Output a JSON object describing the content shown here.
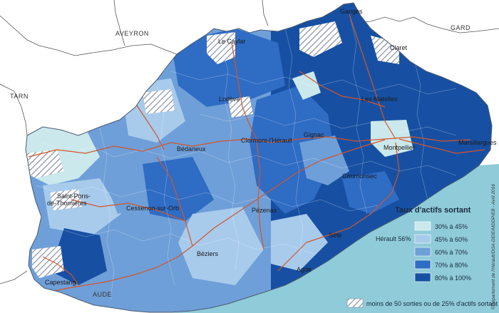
{
  "departments": {
    "aveyron": "AVEYRON",
    "gard": "GARD",
    "tarn": "TARN",
    "aude": "AUDE"
  },
  "towns": {
    "ganges": "Ganges",
    "le_caylar": "Le Caylar",
    "claret": "Claret",
    "les_matelles": "Les Matelles",
    "lodeve": "Lodève",
    "bedarieux": "Bédarieux",
    "clermont": "Clermont-l'Hérault",
    "gignac": "Gignac",
    "montpellier": "Montpellier",
    "marsillargues": "Marsillargues",
    "cournonsec": "Cournonsec",
    "saint_pons": "Saint-Pons-de-Thomières",
    "cessenon": "Cessenon-sur-Orb",
    "pezenas": "Pézenas",
    "sete": "Sète",
    "beziers": "Béziers",
    "agde": "Agde",
    "capestang": "Capestang"
  },
  "legend": {
    "title": "Taux d'actifs sortant",
    "reference": "Hérault 56%",
    "classes": [
      {
        "label": "30% à 45%",
        "color": "#cbe8ec"
      },
      {
        "label": "45% à 60%",
        "color": "#a8cbec"
      },
      {
        "label": "60% à 70%",
        "color": "#6f9fd8"
      },
      {
        "label": "70% à 80%",
        "color": "#2f6cc4"
      },
      {
        "label": "80% à 100%",
        "color": "#1750a3"
      }
    ],
    "hatch_label": "moins de 50 sorties ou de 25% d'actifs sortant"
  },
  "colors": {
    "sea": "#8fcbd8",
    "roads": "#d2552b",
    "outside": "#ffffff",
    "borders": "#555555"
  },
  "credit": "©Département de l'Hérault/DGA-DEIE/MDDP/EB - Avril 2016"
}
